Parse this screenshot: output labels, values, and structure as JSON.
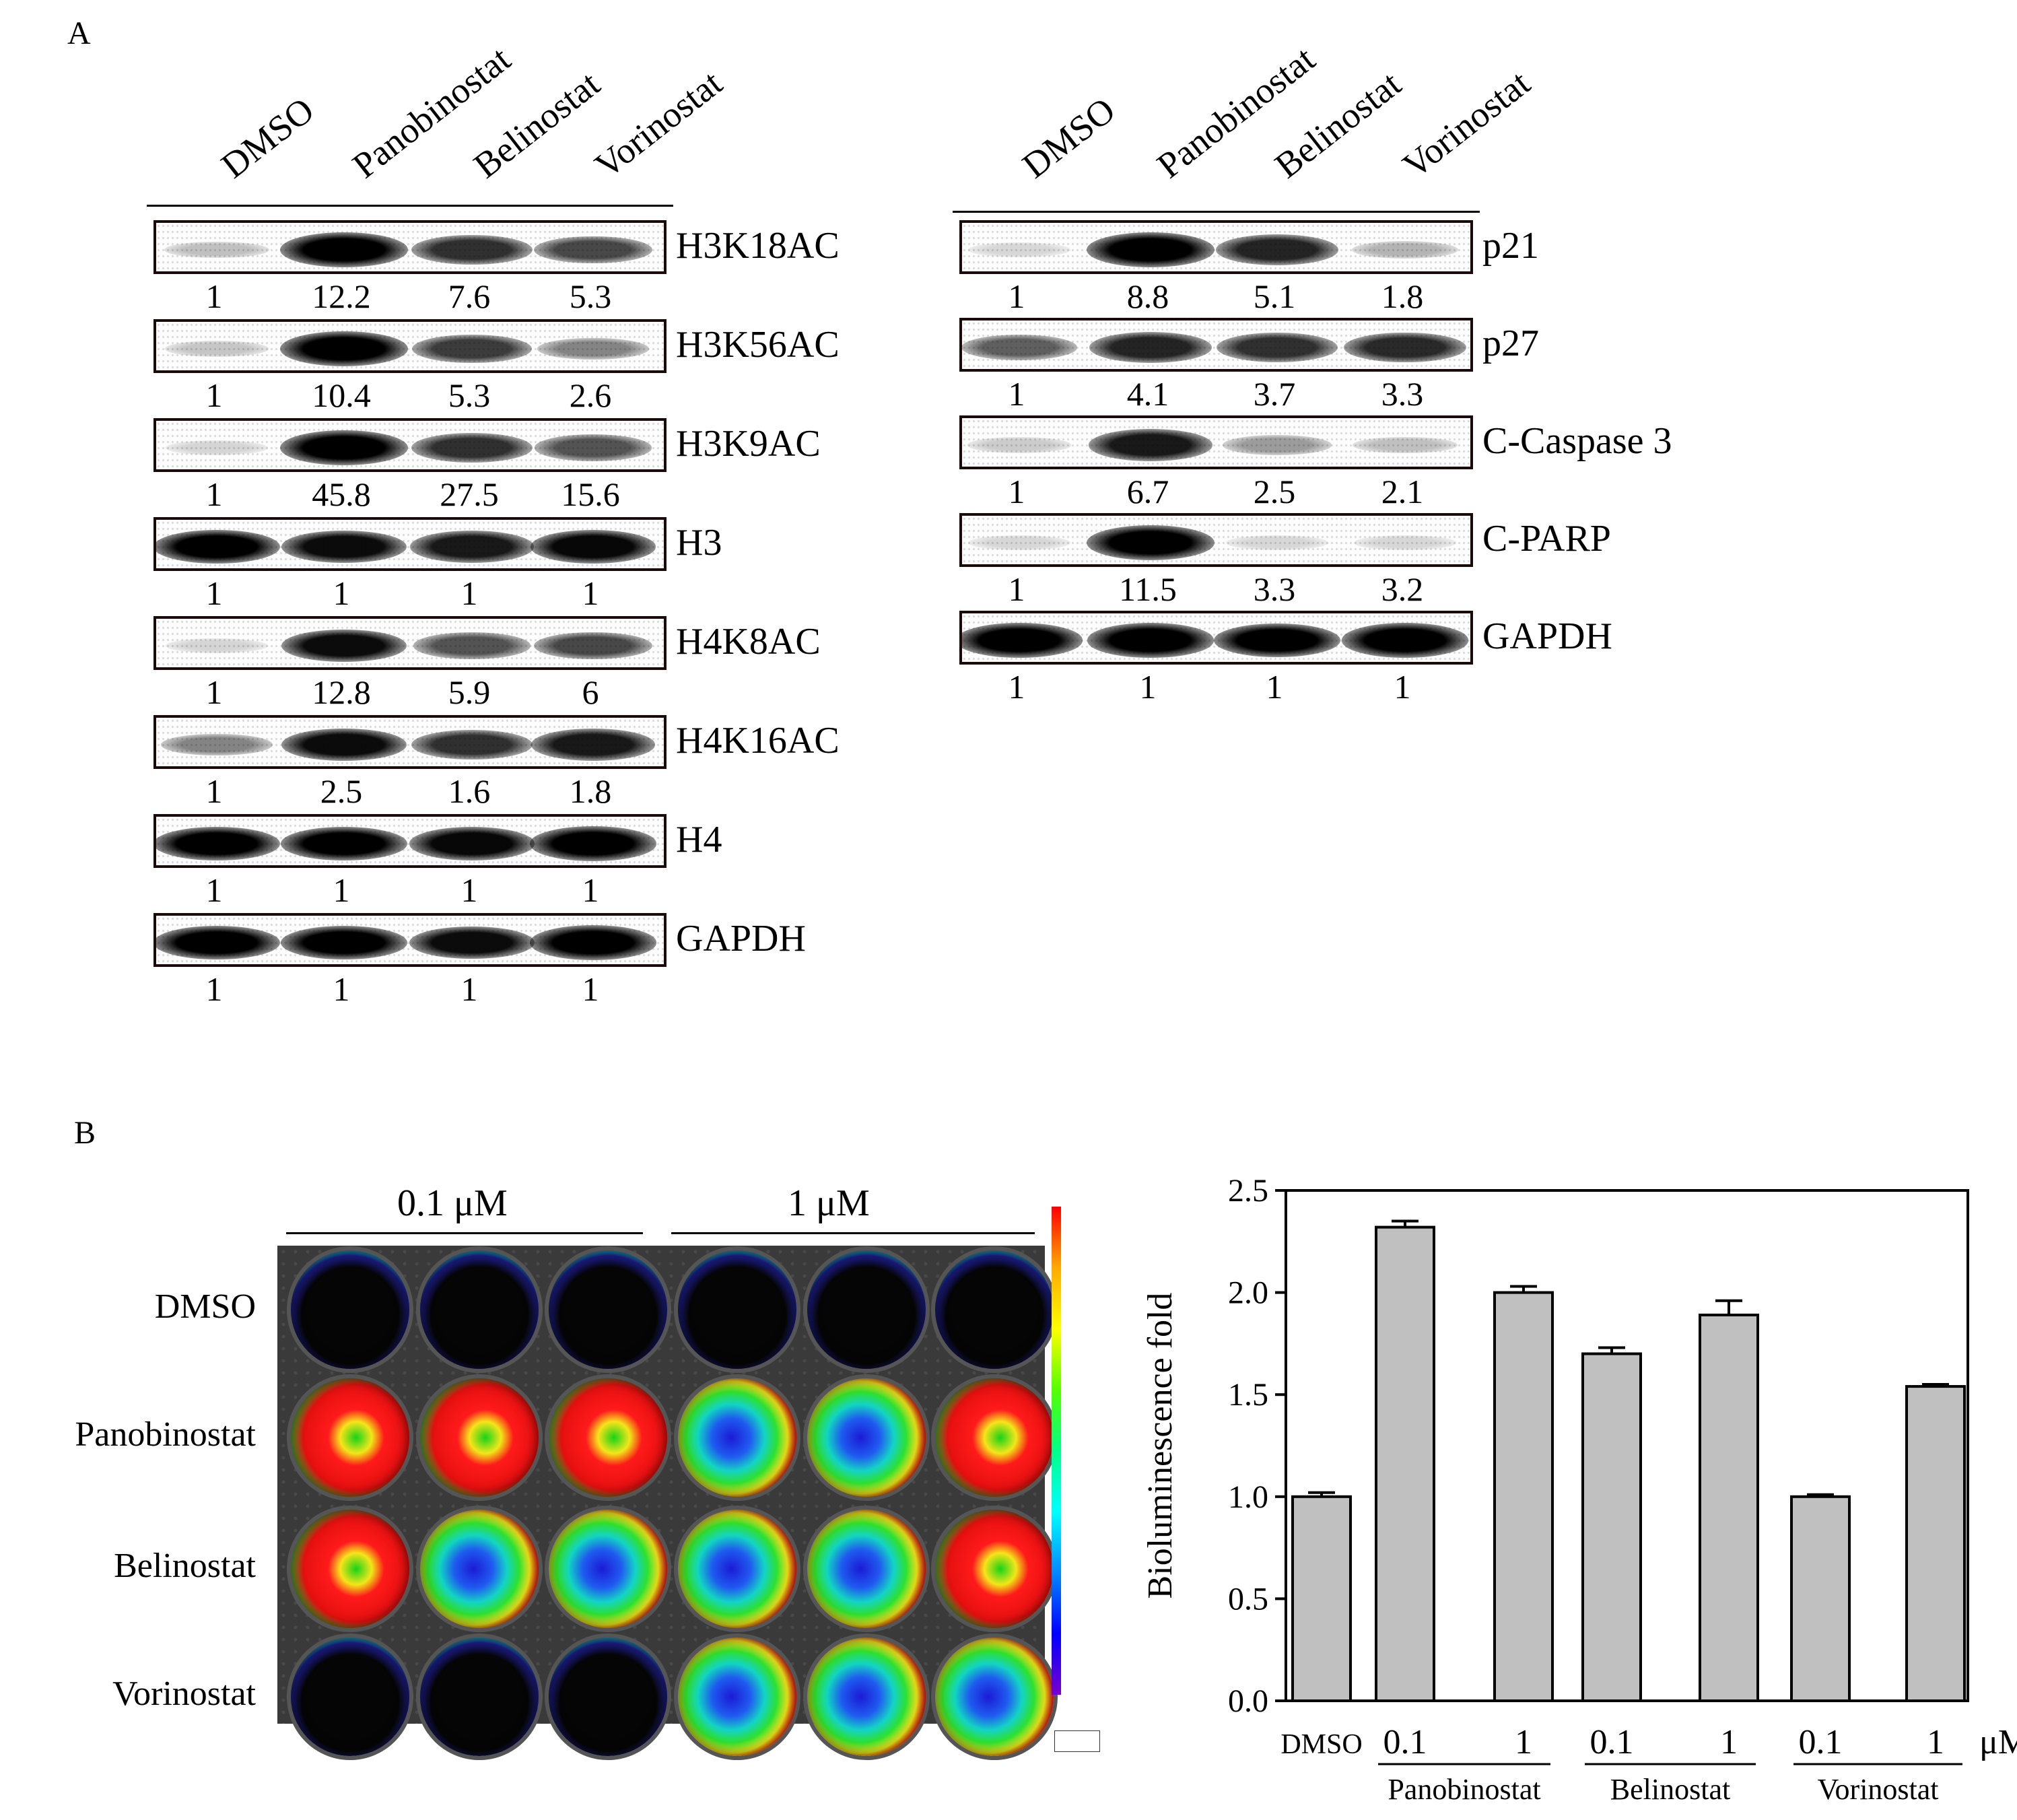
{
  "panel_a": {
    "letter": "A",
    "lanes": [
      "DMSO",
      "Panobinostat",
      "Belinostat",
      "Vorinostat"
    ],
    "left_blots": [
      {
        "label": "H3K18AC",
        "values": [
          "1",
          "12.2",
          "7.6",
          "5.3"
        ],
        "intensity": [
          0.15,
          1.0,
          0.75,
          0.65
        ]
      },
      {
        "label": "H3K56AC",
        "values": [
          "1",
          "10.4",
          "5.3",
          "2.6"
        ],
        "intensity": [
          0.12,
          1.0,
          0.7,
          0.4
        ]
      },
      {
        "label": "H3K9AC",
        "values": [
          "1",
          "45.8",
          "27.5",
          "15.6"
        ],
        "intensity": [
          0.06,
          1.0,
          0.75,
          0.6
        ]
      },
      {
        "label": "H3",
        "values": [
          "1",
          "1",
          "1",
          "1"
        ],
        "intensity": [
          0.95,
          0.9,
          0.85,
          0.92
        ]
      },
      {
        "label": "H4K8AC",
        "values": [
          "1",
          "12.8",
          "5.9",
          "6"
        ],
        "intensity": [
          0.06,
          0.9,
          0.6,
          0.65
        ]
      },
      {
        "label": "H4K16AC",
        "values": [
          "1",
          "2.5",
          "1.6",
          "1.8"
        ],
        "intensity": [
          0.4,
          0.9,
          0.75,
          0.85
        ]
      },
      {
        "label": "H4",
        "values": [
          "1",
          "1",
          "1",
          "1"
        ],
        "intensity": [
          0.95,
          0.95,
          0.92,
          0.97
        ]
      },
      {
        "label": "GAPDH",
        "values": [
          "1",
          "1",
          "1",
          "1"
        ],
        "intensity": [
          0.95,
          0.95,
          0.9,
          0.97
        ]
      }
    ],
    "right_blots": [
      {
        "label": "p21",
        "values": [
          "1",
          "8.8",
          "5.1",
          "1.8"
        ],
        "intensity": [
          0.05,
          1.0,
          0.8,
          0.2
        ]
      },
      {
        "label": "p27",
        "values": [
          "1",
          "4.1",
          "3.7",
          "3.3"
        ],
        "intensity": [
          0.55,
          0.8,
          0.75,
          0.78
        ]
      },
      {
        "label": "C-Caspase 3",
        "values": [
          "1",
          "6.7",
          "2.5",
          "2.1"
        ],
        "intensity": [
          0.1,
          0.85,
          0.3,
          0.15
        ]
      },
      {
        "label": "C-PARP",
        "values": [
          "1",
          "11.5",
          "3.3",
          "3.2"
        ],
        "intensity": [
          0.05,
          1.0,
          0.05,
          0.05
        ]
      },
      {
        "label": "GAPDH",
        "values": [
          "1",
          "1",
          "1",
          "1"
        ],
        "intensity": [
          0.97,
          0.97,
          0.95,
          0.97
        ]
      }
    ]
  },
  "panel_b": {
    "letter": "B",
    "plate": {
      "concentration_labels": [
        "0.1 μM",
        "1 μM"
      ],
      "row_labels": [
        "DMSO",
        "Panobinostat",
        "Belinostat",
        "Vorinostat"
      ],
      "row_signal": [
        [
          0.1,
          0.1,
          0.1,
          0.1,
          0.1,
          0.1
        ],
        [
          1.0,
          1.0,
          1.0,
          0.6,
          0.7,
          0.8
        ],
        [
          0.8,
          0.65,
          0.7,
          0.75,
          0.65,
          0.85
        ],
        [
          0.15,
          0.15,
          0.2,
          0.6,
          0.6,
          0.7
        ]
      ]
    },
    "colors": {
      "bar_fill": "#c0c0c0",
      "bar_stroke": "#000000"
    }
  },
  "chart_data": {
    "type": "bar",
    "categories": [
      "DMSO",
      "Panobinostat 0.1",
      "Panobinostat 1",
      "Belinostat 0.1",
      "Belinostat 1",
      "Vorinostat 0.1",
      "Vorinostat 1"
    ],
    "values": [
      1.0,
      2.32,
      2.0,
      1.7,
      1.89,
      1.0,
      1.54
    ],
    "errors": [
      0.02,
      0.03,
      0.03,
      0.03,
      0.07,
      0.01,
      0.01
    ],
    "tick_labels": [
      "DMSO",
      "0.1",
      "1",
      "0.1",
      "1",
      "0.1",
      "1"
    ],
    "group_labels": [
      "Panobinostat",
      "Belinostat",
      "Vorinostat"
    ],
    "unit_label": "μM",
    "ylabel": "Bioluminescence fold",
    "xlabel": "",
    "title": "",
    "ylim": [
      0.0,
      2.5
    ],
    "yticks": [
      "0.0",
      "0.5",
      "1.0",
      "1.5",
      "2.0",
      "2.5"
    ],
    "grid": false,
    "legend": "none"
  }
}
